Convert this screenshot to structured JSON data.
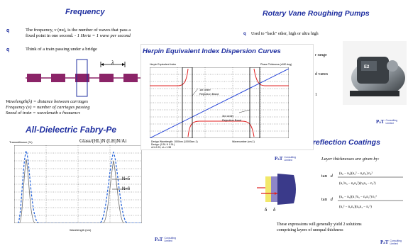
{
  "freq": {
    "title": "Frequency",
    "bullet1_l1": "The frequency, ν (nu), is the number of waves that pass a",
    "bullet1_l2a": "fixed point in one second. - ",
    "bullet1_l2b": "1 Hertz = 1 wave per second",
    "bullet2": "Think of a train passing under a bridge",
    "lambda_label": "λ",
    "wl_line": "Wavelength(λ) = distance between carriages",
    "fq_line": "Frequency (ν) = number of carriages passing",
    "speed_line": "Speed of train = wavelength x frequency"
  },
  "rotary": {
    "title": "Rotary Vane Roughing Pumps",
    "bullet1": "Used to \"back\" other, high or ultra high",
    "frag1": "r range",
    "frag2": "d vanes",
    "frag3": "1"
  },
  "herpin": {
    "title": "Herpin Equivalent Index Dispersion Curves",
    "left_label": "Herpin Equivalent Index",
    "right_label": "Phase Thickness (x180 deg)",
    "annot1_l1": "1st order",
    "annot1_l2": "Rejection Band",
    "annot2_l1": "3rd order",
    "annot2_l2": "Rejection Band",
    "design_l1": "Design Wavelength: 1000nm (10000cm-1)",
    "design_l2": "Design: (0.5L H 0.5L)",
    "design_l3": "nH=2.29, nL=1.38",
    "xlabel": "Wavenumber (cm-1)"
  },
  "fabry": {
    "title": "All-Dielectric Fabry-Pe",
    "design": "Glass/(HL)N (LH)N/Ai",
    "ylabel": "Transmittance (%)",
    "xlabel": "Wavelength (nm)",
    "n_label1": "N=5",
    "n_label2": "N=6"
  },
  "ar": {
    "title": "ntireflection Coatings",
    "given": "Layer thicknesses are given by:",
    "tan1": "tan",
    "tan2": "tan",
    "d1": "d",
    "d2": "d",
    "note_l1": "These expressions will generally yield 2 solutions",
    "note_l2": "comprising layers of unequal thickness",
    "delta1": "δ",
    "delta2": "δ"
  },
  "logo": {
    "pt": "P",
    "amp": "a",
    "t": "T",
    "consulting": "Consulting",
    "limited": "Limited"
  },
  "colors": {
    "title_blue": "#1f2fa0",
    "carriage": "#8b2468",
    "curve_red": "#e02020",
    "curve_blue": "#1f3fd8",
    "layer_yellow": "#f2e86a",
    "layer_lavender": "#8e86c8",
    "layer_navy": "#3a3a8a"
  }
}
